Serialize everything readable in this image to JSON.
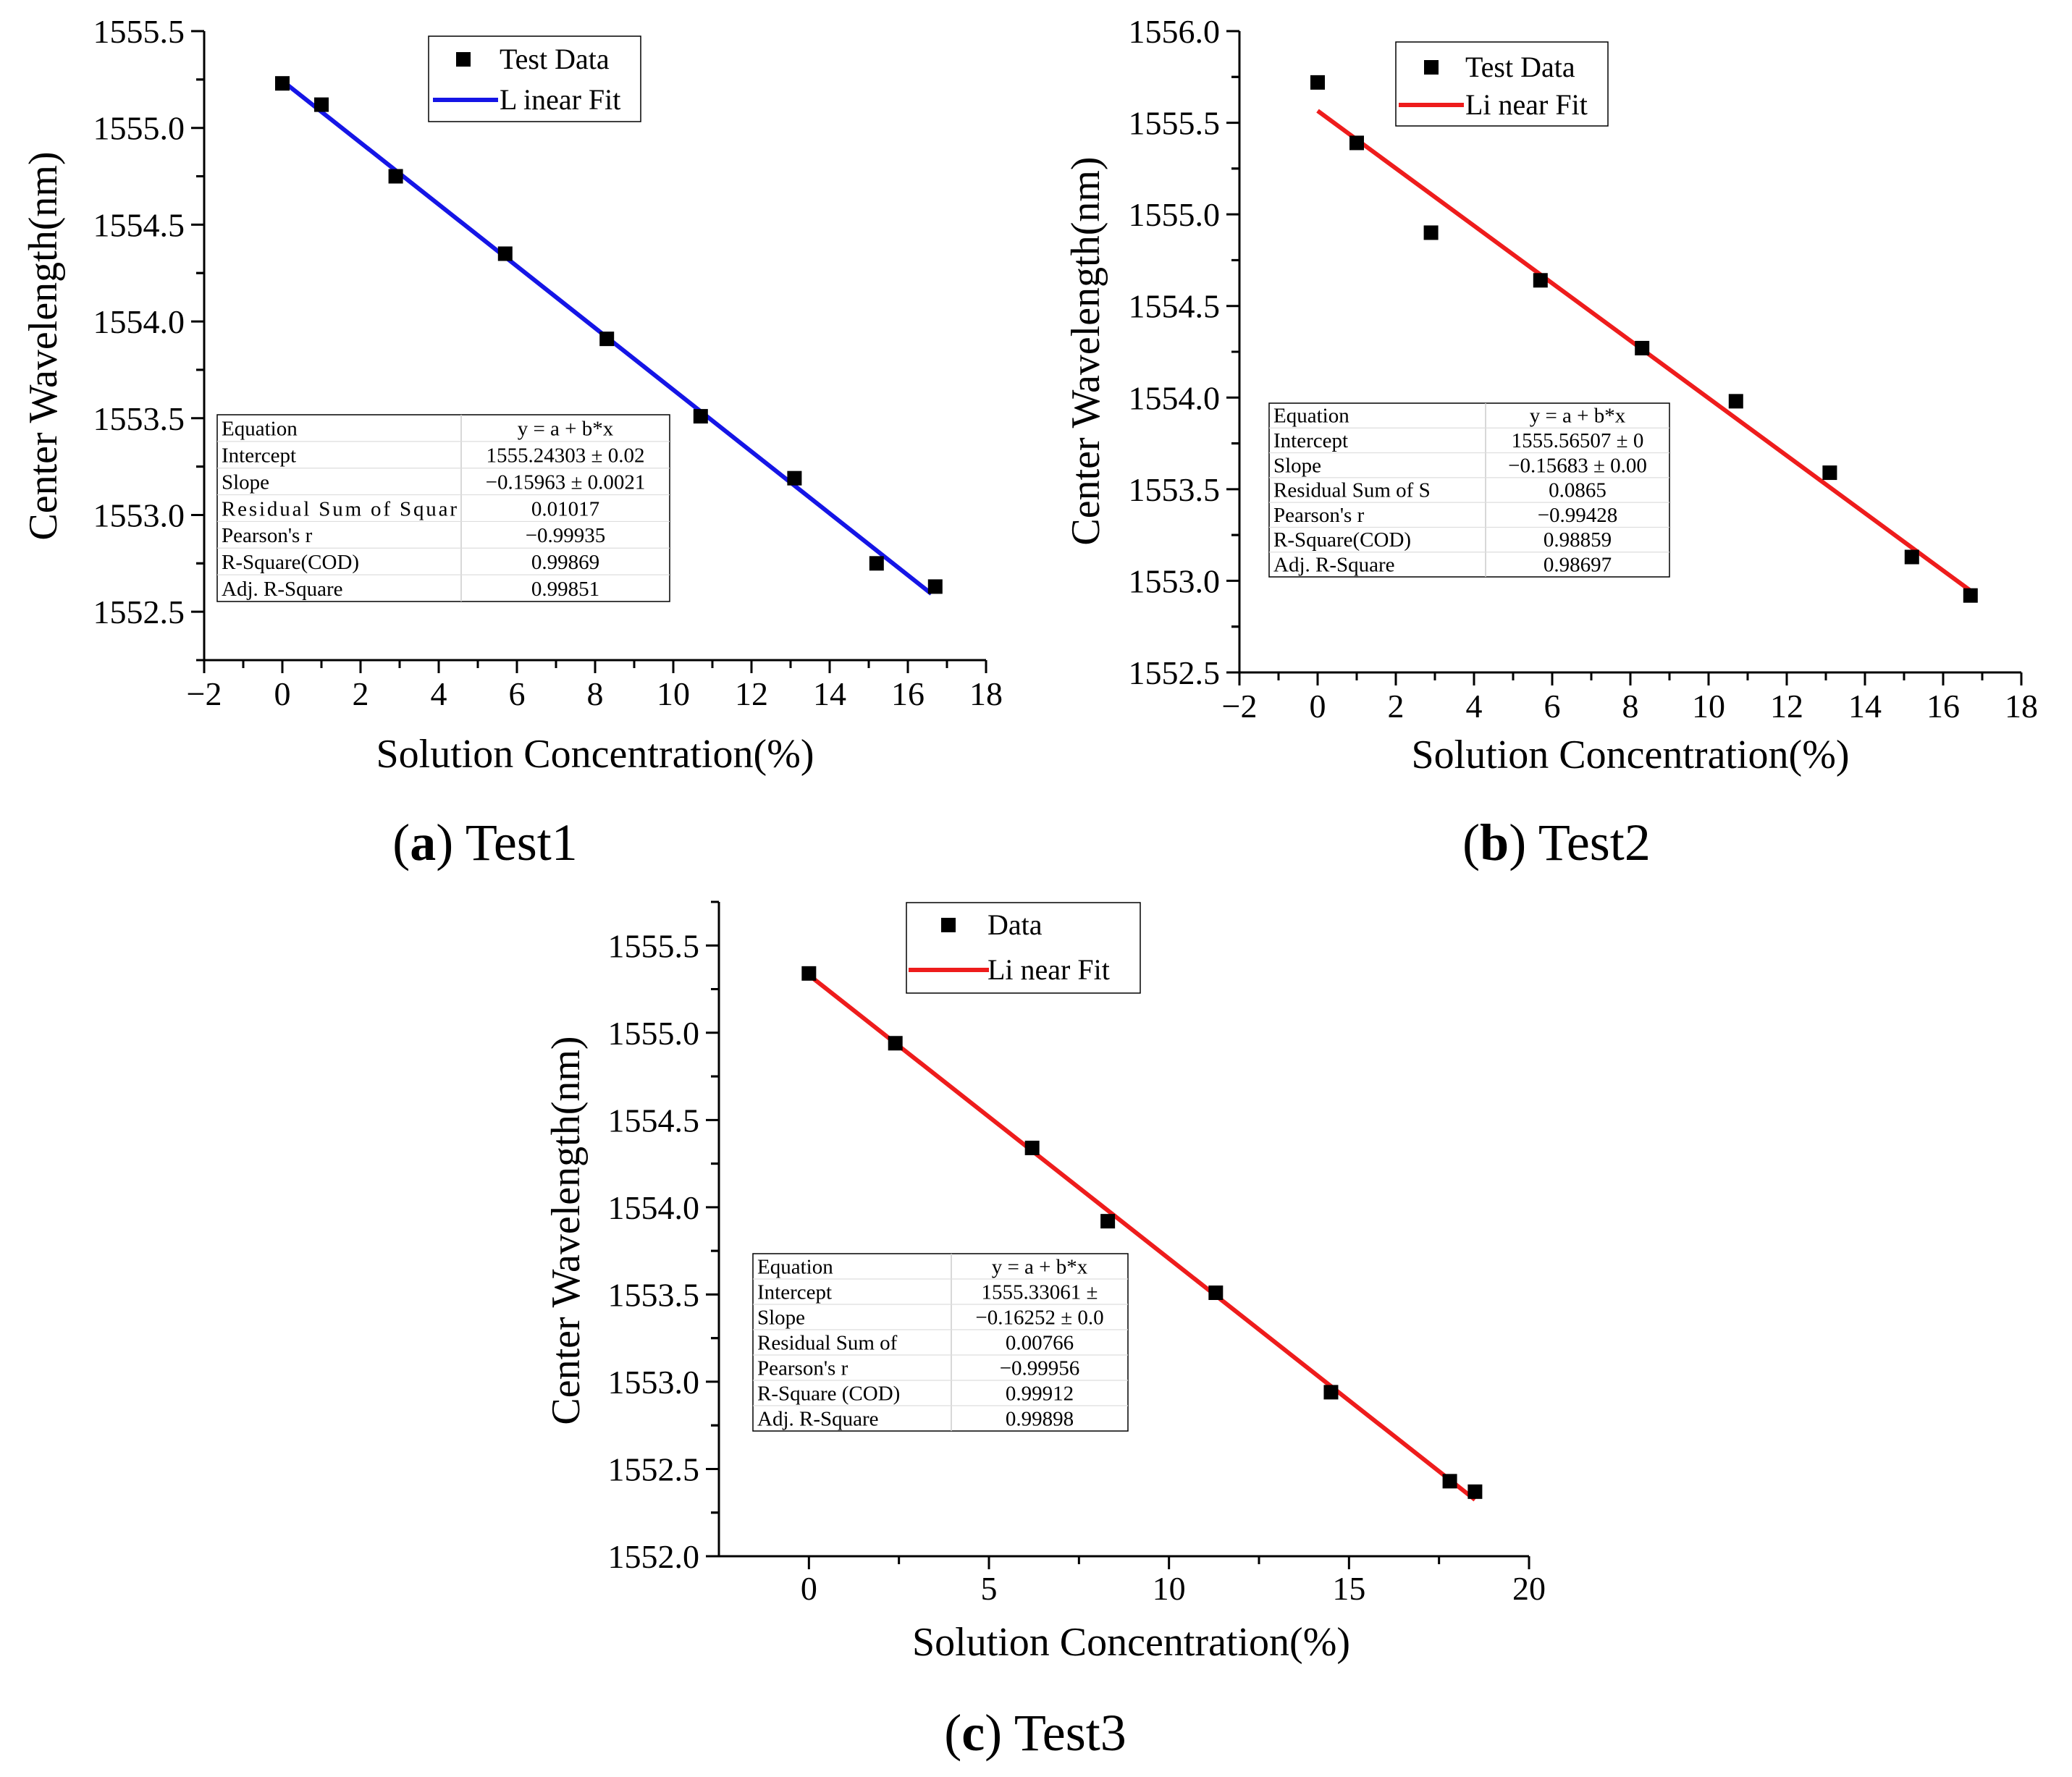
{
  "chart_data": [
    {
      "id": "a",
      "type": "scatter",
      "ylabel": "Center Wavelength(nm)",
      "xlabel": "Solution Concentration(%)",
      "xlim": [
        -2,
        18
      ],
      "ylim": [
        1552.25,
        1555.5
      ],
      "x_ticks": [
        -2,
        0,
        2,
        4,
        6,
        8,
        10,
        12,
        14,
        16,
        18
      ],
      "x_tick_labels": [
        "−2",
        "0",
        "2",
        "4",
        "6",
        "8",
        "10",
        "12",
        "14",
        "16",
        "18"
      ],
      "y_ticks": [
        1552.5,
        1553.0,
        1553.5,
        1554.0,
        1554.5,
        1555.0,
        1555.5
      ],
      "y_tick_labels": [
        "1552.5",
        "1553.0",
        "1553.5",
        "1554.0",
        "1554.5",
        "1555.0",
        "1555.5"
      ],
      "series": [
        {
          "name": "Test Data",
          "kind": "points",
          "color": "#000000",
          "x": [
            0,
            1,
            2.9,
            5.7,
            8.3,
            10.7,
            13.1,
            15.2,
            16.7
          ],
          "y": [
            1555.23,
            1555.12,
            1554.75,
            1554.35,
            1553.91,
            1553.51,
            1553.19,
            1552.75,
            1552.63
          ]
        },
        {
          "name": "L inear Fit",
          "kind": "line",
          "color": "#1515e6",
          "x": [
            0,
            16.6
          ],
          "y": [
            1555.24303,
            1552.59317
          ]
        }
      ],
      "legend": [
        {
          "label": "Test Data",
          "marker": "square",
          "color": "#000000"
        },
        {
          "label": "L inear Fit",
          "marker": "line",
          "color": "#1515e6"
        }
      ],
      "fit_table": [
        [
          "Equation",
          "y = a + b*x"
        ],
        [
          "Intercept",
          "1555.24303 ± 0.02"
        ],
        [
          "Slope",
          "−0.15963 ± 0.0021"
        ],
        [
          "Residual Sum of Squar",
          "0.01017"
        ],
        [
          "Pearson's r",
          "−0.99935"
        ],
        [
          "R-Square(COD)",
          "0.99869"
        ],
        [
          "Adj. R-Square",
          "0.99851"
        ]
      ],
      "caption_letter": "a",
      "caption_text": "Test1"
    },
    {
      "id": "b",
      "type": "scatter",
      "ylabel": "Center Wavelength(nm)",
      "xlabel": "Solution Concentration(%)",
      "xlim": [
        -2,
        18
      ],
      "ylim": [
        1552.5,
        1556.0
      ],
      "x_ticks": [
        -2,
        0,
        2,
        4,
        6,
        8,
        10,
        12,
        14,
        16,
        18
      ],
      "x_tick_labels": [
        "−2",
        "0",
        "2",
        "4",
        "6",
        "8",
        "10",
        "12",
        "14",
        "16",
        "18"
      ],
      "y_ticks": [
        1552.5,
        1553.0,
        1553.5,
        1554.0,
        1554.5,
        1555.0,
        1555.5,
        1556.0
      ],
      "y_tick_labels": [
        "1552.5",
        "1553.0",
        "1553.5",
        "1554.0",
        "1554.5",
        "1555.0",
        "1555.5",
        "1556.0"
      ],
      "series": [
        {
          "name": "Test Data",
          "kind": "points",
          "color": "#000000",
          "x": [
            0,
            1,
            2.9,
            5.7,
            8.3,
            10.7,
            13.1,
            15.2,
            16.7
          ],
          "y": [
            1555.72,
            1555.39,
            1554.9,
            1554.64,
            1554.27,
            1553.98,
            1553.59,
            1553.13,
            1552.92
          ]
        },
        {
          "name": "Li near Fit",
          "kind": "line",
          "color": "#ee1c1c",
          "x": [
            0,
            16.7
          ],
          "y": [
            1555.56507,
            1552.94601
          ]
        }
      ],
      "legend": [
        {
          "label": "Test Data",
          "marker": "square",
          "color": "#000000"
        },
        {
          "label": "Li near Fit",
          "marker": "line",
          "color": "#ee1c1c"
        }
      ],
      "fit_table": [
        [
          "Equation",
          "y = a + b*x"
        ],
        [
          "Intercept",
          "1555.56507 ± 0"
        ],
        [
          "Slope",
          "−0.15683 ± 0.00"
        ],
        [
          "Residual Sum of S",
          "0.0865"
        ],
        [
          "Pearson's r",
          "−0.99428"
        ],
        [
          "R-Square(COD)",
          "0.98859"
        ],
        [
          "Adj. R-Square",
          "0.98697"
        ]
      ],
      "caption_letter": "b",
      "caption_text": "Test2"
    },
    {
      "id": "c",
      "type": "scatter",
      "ylabel": "Center Wavelength(nm)",
      "xlabel": "Solution Concentration(%)",
      "xlim": [
        -2.5,
        20
      ],
      "ylim": [
        1552.0,
        1555.75
      ],
      "x_ticks": [
        0,
        5,
        10,
        15,
        20
      ],
      "x_tick_labels": [
        "0",
        "5",
        "10",
        "15",
        "20"
      ],
      "y_ticks": [
        1552.0,
        1552.5,
        1553.0,
        1553.5,
        1554.0,
        1554.5,
        1555.0,
        1555.5
      ],
      "y_tick_labels": [
        "1552.0",
        "1552.5",
        "1553.0",
        "1553.5",
        "1554.0",
        "1554.5",
        "1555.0",
        "1555.5"
      ],
      "series": [
        {
          "name": "Data",
          "kind": "points",
          "color": "#000000",
          "x": [
            0,
            2.4,
            6.2,
            8.3,
            11.3,
            14.5,
            17.8,
            18.5
          ],
          "y": [
            1555.34,
            1554.94,
            1554.34,
            1553.92,
            1553.51,
            1552.94,
            1552.43,
            1552.37
          ]
        },
        {
          "name": "Li near Fit",
          "kind": "line",
          "color": "#ee1c1c",
          "x": [
            0,
            18.5
          ],
          "y": [
            1555.33061,
            1552.32399
          ]
        }
      ],
      "legend": [
        {
          "label": "Data",
          "marker": "square",
          "color": "#000000"
        },
        {
          "label": "Li near Fit",
          "marker": "line",
          "color": "#ee1c1c"
        }
      ],
      "fit_table": [
        [
          "Equation",
          "y = a + b*x"
        ],
        [
          "Intercept",
          "1555.33061 ±"
        ],
        [
          "Slope",
          "−0.16252 ± 0.0"
        ],
        [
          "Residual Sum of",
          "0.00766"
        ],
        [
          "Pearson's r",
          "−0.99956"
        ],
        [
          "R-Square (COD)",
          "0.99912"
        ],
        [
          "Adj. R-Square",
          "0.99898"
        ]
      ],
      "caption_letter": "c",
      "caption_text": "Test3"
    }
  ]
}
